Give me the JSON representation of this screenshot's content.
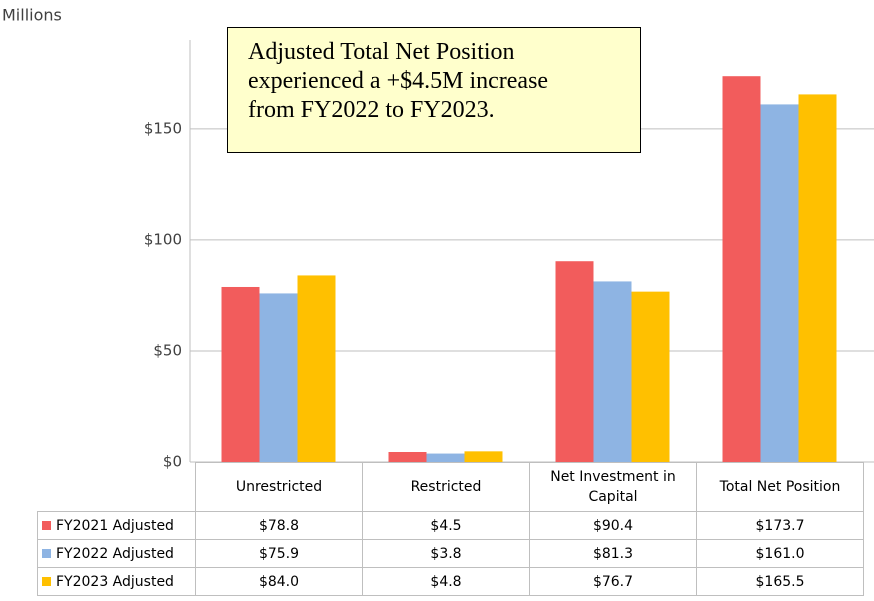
{
  "chart_data": {
    "type": "bar",
    "y_unit_label": "Millions",
    "annotation": [
      "Adjusted Total Net Position",
      "experienced a +$4.5M increase",
      "from FY2022 to FY2023."
    ],
    "categories": [
      "Unrestricted",
      "Restricted",
      "Net Investment in Capital",
      "Total Net Position"
    ],
    "series": [
      {
        "name": "FY2021 Adjusted",
        "color": "#f25c5c",
        "values": [
          78.8,
          4.5,
          90.4,
          173.7
        ],
        "value_labels": [
          "$78.8",
          "$4.5",
          "$90.4",
          "$173.7"
        ]
      },
      {
        "name": "FY2022 Adjusted",
        "color": "#8eb4e3",
        "values": [
          75.9,
          3.8,
          81.3,
          161.0
        ],
        "value_labels": [
          "$75.9",
          "$3.8",
          "$81.3",
          "$161.0"
        ]
      },
      {
        "name": "FY2023 Adjusted",
        "color": "#ffc000",
        "values": [
          84.0,
          4.8,
          76.7,
          165.5
        ],
        "value_labels": [
          "$84.0",
          "$4.8",
          "$76.7",
          "$165.5"
        ]
      }
    ],
    "ylim": [
      0,
      190
    ],
    "yticks": [
      {
        "value": 0,
        "label": "$0"
      },
      {
        "value": 50,
        "label": "$50"
      },
      {
        "value": 100,
        "label": "$100"
      },
      {
        "value": 150,
        "label": "$150"
      }
    ],
    "grid": true,
    "legend": "table"
  }
}
